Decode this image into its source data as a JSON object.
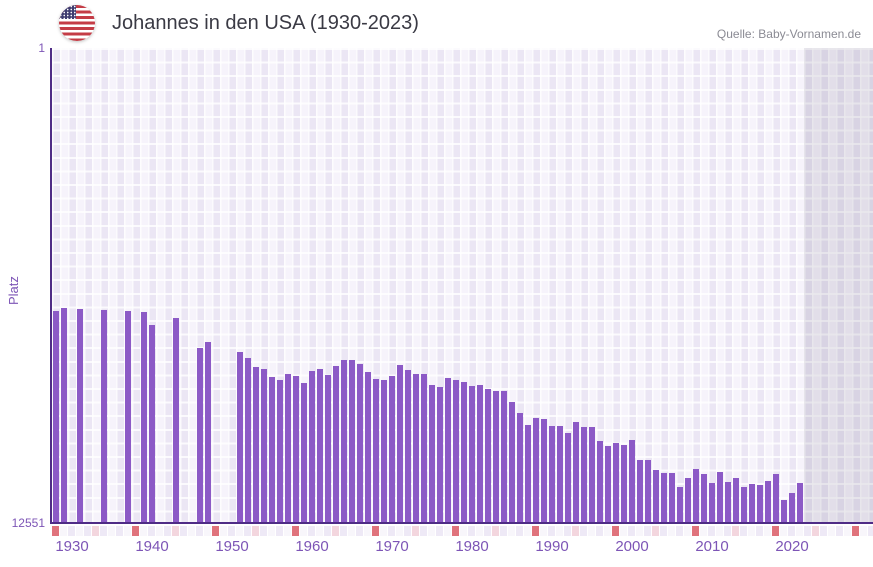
{
  "header": {
    "title": "Johannes in den USA (1930-2023)",
    "source": "Quelle: Baby-Vornamen.de",
    "flag": "us-flag"
  },
  "chart_data": {
    "type": "bar",
    "title": "Johannes in den USA (1930-2023)",
    "ylabel": "Platz",
    "y_axis": {
      "top_tick": "1",
      "bottom_tick": "12551",
      "min": 1,
      "max": 12551,
      "inverted": true
    },
    "x_ticks": [
      "1930",
      "1940",
      "1950",
      "1960",
      "1970",
      "1980",
      "1990",
      "2000",
      "2010",
      "2020"
    ],
    "x_range_years": [
      1930,
      2032
    ],
    "data_span": [
      1930,
      2023
    ],
    "missing_years": [
      1932,
      1934,
      1935,
      1937,
      1938,
      1940,
      1943,
      1944,
      1946,
      1947,
      1950,
      1951,
      1952
    ],
    "grid": true,
    "legend": "none",
    "colors": {
      "bar": "#8c5ac6",
      "axis_line": "#4f2c86",
      "tick_text": "#7d55b6",
      "title_text": "#3a3a44",
      "source_text": "#8b8b94",
      "plot_bg_dark": "#ebe6f4",
      "plot_bg_light": "#f6f3fb",
      "future_overlay": "rgba(95,88,115,0.13)",
      "strip_decade": "#e0737c",
      "strip_half_decade": "#f3d6de",
      "strip_even": "#eee9f6",
      "strip_odd": "#f8f6fb"
    },
    "series": [
      {
        "year": 1930,
        "rank": 6940
      },
      {
        "year": 1931,
        "rank": 6860
      },
      {
        "year": 1933,
        "rank": 6890
      },
      {
        "year": 1936,
        "rank": 6915
      },
      {
        "year": 1939,
        "rank": 6950
      },
      {
        "year": 1941,
        "rank": 6975
      },
      {
        "year": 1942,
        "rank": 7325
      },
      {
        "year": 1945,
        "rank": 7125
      },
      {
        "year": 1948,
        "rank": 7935
      },
      {
        "year": 1949,
        "rank": 7760
      },
      {
        "year": 1953,
        "rank": 8030
      },
      {
        "year": 1954,
        "rank": 8190
      },
      {
        "year": 1955,
        "rank": 8430
      },
      {
        "year": 1956,
        "rank": 8480
      },
      {
        "year": 1957,
        "rank": 8690
      },
      {
        "year": 1958,
        "rank": 8770
      },
      {
        "year": 1959,
        "rank": 8615
      },
      {
        "year": 1960,
        "rank": 8665
      },
      {
        "year": 1961,
        "rank": 8850
      },
      {
        "year": 1962,
        "rank": 8535
      },
      {
        "year": 1963,
        "rank": 8480
      },
      {
        "year": 1964,
        "rank": 8640
      },
      {
        "year": 1965,
        "rank": 8400
      },
      {
        "year": 1966,
        "rank": 8245
      },
      {
        "year": 1967,
        "rank": 8245
      },
      {
        "year": 1968,
        "rank": 8350
      },
      {
        "year": 1969,
        "rank": 8560
      },
      {
        "year": 1970,
        "rank": 8745
      },
      {
        "year": 1971,
        "rank": 8770
      },
      {
        "year": 1972,
        "rank": 8665
      },
      {
        "year": 1973,
        "rank": 8375
      },
      {
        "year": 1974,
        "rank": 8510
      },
      {
        "year": 1975,
        "rank": 8615
      },
      {
        "year": 1976,
        "rank": 8615
      },
      {
        "year": 1977,
        "rank": 8905
      },
      {
        "year": 1978,
        "rank": 8955
      },
      {
        "year": 1979,
        "rank": 8720
      },
      {
        "year": 1980,
        "rank": 8770
      },
      {
        "year": 1981,
        "rank": 8825
      },
      {
        "year": 1982,
        "rank": 8930
      },
      {
        "year": 1983,
        "rank": 8905
      },
      {
        "year": 1984,
        "rank": 9010
      },
      {
        "year": 1985,
        "rank": 9065
      },
      {
        "year": 1986,
        "rank": 9065
      },
      {
        "year": 1987,
        "rank": 9355
      },
      {
        "year": 1988,
        "rank": 9645
      },
      {
        "year": 1989,
        "rank": 9960
      },
      {
        "year": 1990,
        "rank": 9775
      },
      {
        "year": 1991,
        "rank": 9800
      },
      {
        "year": 1992,
        "rank": 9985
      },
      {
        "year": 1993,
        "rank": 9985
      },
      {
        "year": 1994,
        "rank": 10170
      },
      {
        "year": 1995,
        "rank": 9880
      },
      {
        "year": 1996,
        "rank": 10015
      },
      {
        "year": 1997,
        "rank": 10015
      },
      {
        "year": 1998,
        "rank": 10385
      },
      {
        "year": 1999,
        "rank": 10515
      },
      {
        "year": 2000,
        "rank": 10435
      },
      {
        "year": 2001,
        "rank": 10490
      },
      {
        "year": 2002,
        "rank": 10360
      },
      {
        "year": 2003,
        "rank": 10885
      },
      {
        "year": 2004,
        "rank": 10885
      },
      {
        "year": 2005,
        "rank": 11150
      },
      {
        "year": 2006,
        "rank": 11230
      },
      {
        "year": 2007,
        "rank": 11230
      },
      {
        "year": 2008,
        "rank": 11600
      },
      {
        "year": 2009,
        "rank": 11360
      },
      {
        "year": 2010,
        "rank": 11125
      },
      {
        "year": 2011,
        "rank": 11255
      },
      {
        "year": 2012,
        "rank": 11495
      },
      {
        "year": 2013,
        "rank": 11200
      },
      {
        "year": 2014,
        "rank": 11470
      },
      {
        "year": 2015,
        "rank": 11360
      },
      {
        "year": 2016,
        "rank": 11600
      },
      {
        "year": 2017,
        "rank": 11520
      },
      {
        "year": 2018,
        "rank": 11545
      },
      {
        "year": 2019,
        "rank": 11440
      },
      {
        "year": 2020,
        "rank": 11255
      },
      {
        "year": 2021,
        "rank": 11945
      },
      {
        "year": 2022,
        "rank": 11760
      },
      {
        "year": 2023,
        "rank": 11495
      }
    ]
  }
}
